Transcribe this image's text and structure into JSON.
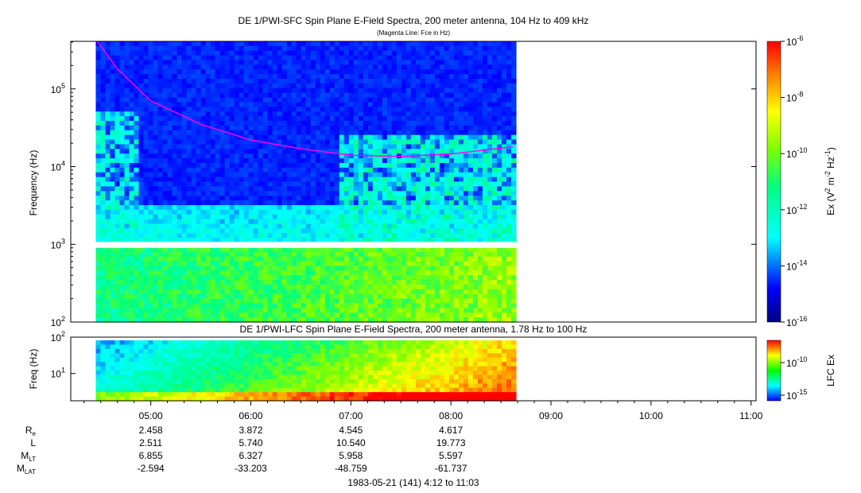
{
  "chart_data": [
    {
      "type": "heatmap",
      "title": "DE 1/PWI-SFC  Spin Plane E-Field Spectra, 200 meter antenna, 104 Hz to 409 kHz",
      "subtitle": "(Magenta Line: Fce in Hz)",
      "ylabel": "Frequency (Hz)",
      "yscale": "log",
      "ylim": [
        100,
        409000
      ],
      "yticks": [
        "10^2",
        "10^3",
        "10^4",
        "10^5"
      ],
      "data_time_range": [
        "04:27",
        "08:39"
      ],
      "colorbar": {
        "label": "Ex (V^2 m^-2 Hz^-1)",
        "scale": "log",
        "range": [
          1e-16,
          1e-06
        ],
        "ticks": [
          "10^-6",
          "10^-8",
          "10^-10",
          "10^-12",
          "10^-14",
          "10^-16"
        ]
      },
      "fce_line": {
        "name": "Fce in Hz",
        "color": "#ff00ff",
        "points": [
          {
            "t": "04:28",
            "f": 409000
          },
          {
            "t": "04:40",
            "f": 180000
          },
          {
            "t": "05:00",
            "f": 70000
          },
          {
            "t": "05:30",
            "f": 35000
          },
          {
            "t": "06:00",
            "f": 22000
          },
          {
            "t": "06:30",
            "f": 17000
          },
          {
            "t": "07:00",
            "f": 14000
          },
          {
            "t": "07:30",
            "f": 13500
          },
          {
            "t": "08:00",
            "f": 14500
          },
          {
            "t": "08:37",
            "f": 18000
          }
        ]
      }
    },
    {
      "type": "heatmap",
      "title": "DE 1/PWI-LFC  Spin Plane E-Field Spectra, 200 meter antenna, 1.78 Hz to 100 Hz",
      "ylabel": "Freq (Hz)",
      "yscale": "log",
      "ylim": [
        1.78,
        100
      ],
      "yticks": [
        "10^1",
        "10^2"
      ],
      "data_time_range": [
        "04:27",
        "08:39"
      ],
      "colorbar": {
        "label": "LFC Ex",
        "scale": "log",
        "ticks": [
          "10^-10",
          "10^-15"
        ]
      }
    }
  ],
  "x_axis": {
    "time_range": [
      "04:12",
      "11:03"
    ],
    "tick_labels": [
      "05:00",
      "06:00",
      "07:00",
      "08:00",
      "09:00",
      "10:00",
      "11:00"
    ],
    "footer": "1983-05-21 (141) 4:12 to 11:03"
  },
  "ephemeris": {
    "rows": [
      {
        "label": "R",
        "sub": "e",
        "values": [
          "2.458",
          "3.872",
          "4.545",
          "4.617"
        ]
      },
      {
        "label": "L",
        "sub": "",
        "values": [
          "2.511",
          "5.740",
          "10.540",
          "19.773"
        ]
      },
      {
        "label": "M",
        "sub": "LT",
        "values": [
          "6.855",
          "6.327",
          "5.958",
          "5.597"
        ]
      },
      {
        "label": "M",
        "sub": "LAT",
        "values": [
          "-2.594",
          "-33.203",
          "-48.759",
          "-61.737"
        ]
      }
    ]
  }
}
